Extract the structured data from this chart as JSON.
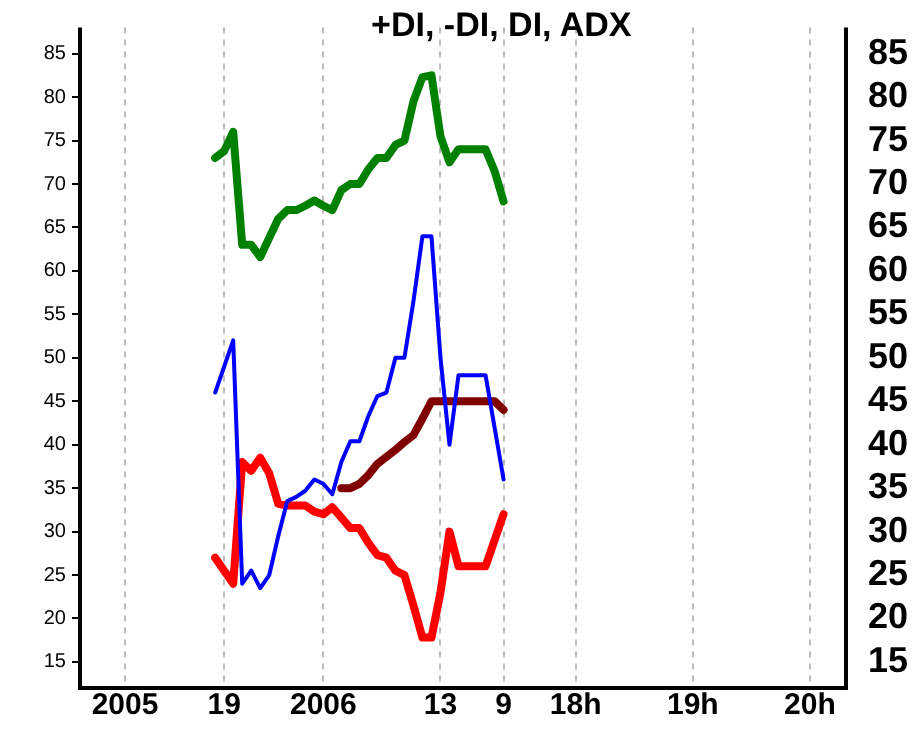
{
  "chart_data": {
    "type": "line",
    "title": "+DI, -DI, DI, ADX",
    "categories": [
      null,
      null,
      null,
      null,
      null,
      "2005",
      null,
      null,
      null,
      null,
      null,
      null,
      null,
      null,
      null,
      null,
      "19",
      null,
      null,
      null,
      null,
      null,
      null,
      null,
      null,
      null,
      null,
      "2006",
      null,
      null,
      null,
      null,
      null,
      null,
      null,
      null,
      null,
      null,
      null,
      null,
      "13",
      null,
      null,
      null,
      null,
      null,
      null,
      "9",
      null,
      null,
      null,
      null,
      null,
      null,
      null,
      "18h",
      null,
      null,
      null,
      null,
      null,
      null,
      null,
      null,
      null,
      null,
      null,
      null,
      "19h",
      null,
      null,
      null,
      null,
      null,
      null,
      null,
      null,
      null,
      null,
      null,
      null,
      "20h",
      null,
      null,
      null,
      null
    ],
    "ylim": [
      12,
      88
    ],
    "yticks": [
      15,
      20,
      25,
      30,
      35,
      40,
      45,
      50,
      55,
      60,
      65,
      70,
      75,
      80,
      85
    ],
    "y2lim": [
      12,
      88
    ],
    "y2ticks": [
      15,
      20,
      25,
      30,
      35,
      40,
      45,
      50,
      55,
      60,
      65,
      70,
      75,
      80,
      85
    ],
    "grid": "x",
    "marker": "none",
    "line_style": "solid",
    "series": [
      {
        "color": "#008000",
        "values": [
          null,
          null,
          null,
          null,
          null,
          null,
          null,
          null,
          null,
          null,
          null,
          null,
          null,
          null,
          null,
          73,
          73.8,
          76,
          63,
          63,
          61.6,
          63.8,
          66,
          67,
          67,
          67.5,
          68.1,
          67.5,
          67,
          69.3,
          70,
          70,
          71.7,
          73,
          73,
          74.5,
          75,
          79.5,
          82.3,
          82.5,
          75.5,
          72.5,
          74,
          74,
          74,
          74,
          71.5,
          68,
          null,
          null,
          null,
          null,
          null,
          null,
          null,
          null,
          null,
          null,
          null,
          null,
          null,
          null,
          null,
          null,
          null,
          null,
          null,
          null,
          null,
          null,
          null,
          null,
          null,
          null,
          null,
          null,
          null,
          null,
          null,
          null,
          null,
          null,
          null,
          null,
          null,
          null
        ]
      },
      {
        "color": "#0000ff",
        "values": [
          null,
          null,
          null,
          null,
          null,
          null,
          null,
          null,
          null,
          null,
          null,
          null,
          null,
          null,
          null,
          46,
          49,
          52,
          24,
          25.5,
          23.5,
          25,
          29.5,
          33.5,
          34,
          34.7,
          36,
          35.5,
          34.3,
          38,
          40.4,
          40.4,
          43.3,
          45.6,
          46,
          50,
          50,
          56.5,
          64,
          64,
          50,
          40,
          48,
          48,
          48,
          48,
          42,
          36,
          null,
          null,
          null,
          null,
          null,
          null,
          null,
          null,
          null,
          null,
          null,
          null,
          null,
          null,
          null,
          null,
          null,
          null,
          null,
          null,
          null,
          null,
          null,
          null,
          null,
          null,
          null,
          null,
          null,
          null,
          null,
          null,
          null,
          null,
          null,
          null,
          null,
          null
        ]
      },
      {
        "color": "#ff0000",
        "values": [
          null,
          null,
          null,
          null,
          null,
          null,
          null,
          null,
          null,
          null,
          null,
          null,
          null,
          null,
          null,
          27,
          25.5,
          24,
          38,
          37,
          38.5,
          36.7,
          33.2,
          33,
          33,
          33,
          32.3,
          32,
          32.8,
          31.6,
          30.4,
          30.4,
          28.7,
          27.3,
          27,
          25.5,
          25,
          21.5,
          17.8,
          17.8,
          23,
          30,
          26,
          26,
          26,
          26,
          29,
          32,
          null,
          null,
          null,
          null,
          null,
          null,
          null,
          null,
          null,
          null,
          null,
          null,
          null,
          null,
          null,
          null,
          null,
          null,
          null,
          null,
          null,
          null,
          null,
          null,
          null,
          null,
          null,
          null,
          null,
          null,
          null,
          null,
          null,
          null,
          null,
          null,
          null,
          null
        ]
      },
      {
        "color": "#800000",
        "values": [
          null,
          null,
          null,
          null,
          null,
          null,
          null,
          null,
          null,
          null,
          null,
          null,
          null,
          null,
          null,
          null,
          null,
          null,
          null,
          null,
          null,
          null,
          null,
          null,
          null,
          null,
          null,
          null,
          null,
          35,
          35,
          35.5,
          36.5,
          37.8,
          38.6,
          39.4,
          40.3,
          41.1,
          43,
          45,
          45,
          45,
          45,
          45,
          45,
          45,
          45,
          44,
          null,
          null,
          null,
          null,
          null,
          null,
          null,
          null,
          null,
          null,
          null,
          null,
          null,
          null,
          null,
          null,
          null,
          null,
          null,
          null,
          null,
          null,
          null,
          null,
          null,
          null,
          null,
          null,
          null,
          null,
          null,
          null,
          null,
          null,
          null,
          null,
          null,
          null
        ]
      }
    ]
  }
}
